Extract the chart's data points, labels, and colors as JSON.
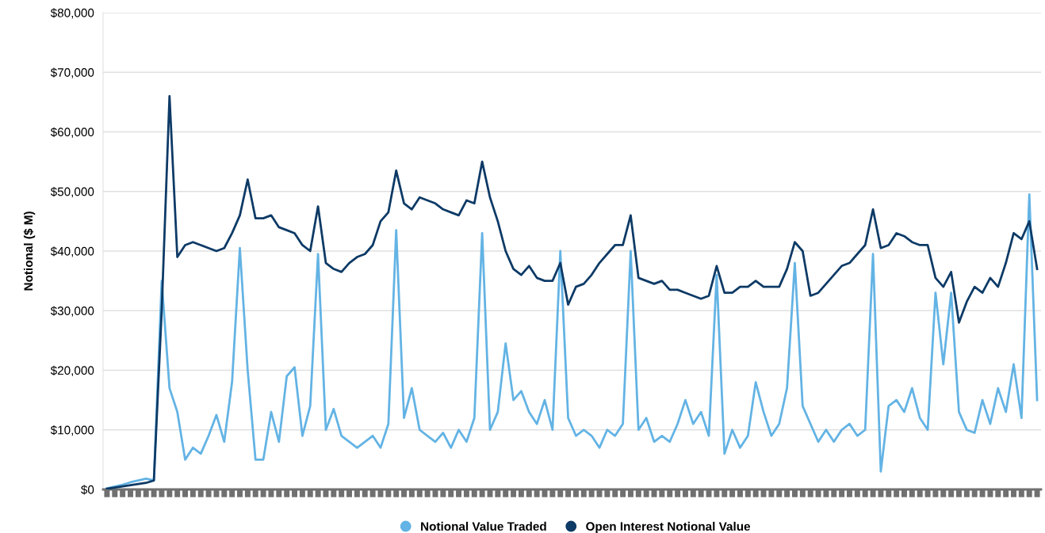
{
  "chart_data": {
    "type": "line",
    "ylabel": "Notional ($ M)",
    "categories": [
      null,
      null,
      null,
      null,
      null,
      null,
      null,
      null,
      null,
      null,
      null,
      null,
      null,
      null,
      null,
      null,
      null,
      null,
      null,
      null,
      null,
      null,
      null,
      null,
      null,
      null,
      null,
      null,
      null,
      null,
      null,
      null,
      null,
      null,
      null,
      null,
      null,
      null,
      null,
      null,
      null,
      null,
      null,
      null,
      null,
      null,
      null,
      null,
      null,
      null,
      null,
      null,
      null,
      null,
      null,
      null,
      null,
      null,
      null,
      null,
      null,
      null,
      null,
      null,
      null,
      null,
      null,
      null,
      null,
      null,
      null,
      null,
      null,
      null,
      null,
      null,
      null,
      null,
      null,
      null,
      null,
      null,
      null,
      null,
      null,
      null,
      null,
      null,
      null,
      null,
      null,
      null,
      null,
      null,
      null,
      null,
      null,
      null,
      null,
      null,
      null,
      null,
      null,
      null,
      null,
      null,
      null,
      null,
      null,
      null,
      null,
      null,
      null,
      null,
      null,
      null,
      null,
      null,
      null,
      null
    ],
    "series": [
      {
        "name": "Notional Value Traded",
        "color": "#63b3e4",
        "values": [
          200,
          500,
          800,
          1200,
          1500,
          1800,
          1500,
          35000,
          17000,
          13000,
          5000,
          7000,
          6000,
          9000,
          12500,
          8000,
          18000,
          40500,
          20000,
          5000,
          5000,
          13000,
          8000,
          19000,
          20500,
          9000,
          14000,
          39500,
          10000,
          13500,
          9000,
          8000,
          7000,
          8000,
          9000,
          7000,
          11000,
          43500,
          12000,
          17000,
          10000,
          9000,
          8000,
          9500,
          7000,
          10000,
          8000,
          12000,
          43000,
          10000,
          13000,
          24500,
          15000,
          16500,
          13000,
          11000,
          15000,
          10000,
          40000,
          12000,
          9000,
          10000,
          9000,
          7000,
          10000,
          9000,
          11000,
          40000,
          10000,
          12000,
          8000,
          9000,
          8000,
          11000,
          15000,
          11000,
          13000,
          9000,
          36000,
          6000,
          10000,
          7000,
          9000,
          18000,
          13000,
          9000,
          11000,
          17000,
          38000,
          14000,
          11000,
          8000,
          10000,
          8000,
          10000,
          11000,
          9000,
          10000,
          39500,
          3000,
          14000,
          15000,
          13000,
          17000,
          12000,
          10000,
          33000,
          21000,
          33000,
          13000,
          10000,
          9500,
          15000,
          11000,
          17000,
          13000,
          21000,
          12000,
          49500,
          15000
        ]
      },
      {
        "name": "Open Interest Notional Value",
        "color": "#0d3a66",
        "values": [
          100,
          300,
          500,
          700,
          900,
          1100,
          1500,
          30000,
          66000,
          39000,
          41000,
          41500,
          41000,
          40500,
          40000,
          40500,
          43000,
          46000,
          52000,
          45500,
          45500,
          46000,
          44000,
          43500,
          43000,
          41000,
          40000,
          47500,
          38000,
          37000,
          36500,
          38000,
          39000,
          39500,
          41000,
          45000,
          46500,
          53500,
          48000,
          47000,
          49000,
          48500,
          48000,
          47000,
          46500,
          46000,
          48500,
          48000,
          55000,
          49000,
          45000,
          40000,
          37000,
          36000,
          37500,
          35500,
          35000,
          35000,
          38000,
          31000,
          34000,
          34500,
          36000,
          38000,
          39500,
          41000,
          41000,
          46000,
          35500,
          35000,
          34500,
          35000,
          33500,
          33500,
          33000,
          32500,
          32000,
          32500,
          37500,
          33000,
          33000,
          34000,
          34000,
          35000,
          34000,
          34000,
          34000,
          37000,
          41500,
          40000,
          32500,
          33000,
          34500,
          36000,
          37500,
          38000,
          39500,
          41000,
          47000,
          40500,
          41000,
          43000,
          42500,
          41500,
          41000,
          41000,
          35500,
          34000,
          36500,
          28000,
          31500,
          34000,
          33000,
          35500,
          34000,
          38000,
          43000,
          42000,
          45000,
          37000
        ]
      }
    ],
    "ylim": [
      0,
      80000
    ],
    "yticks": [
      {
        "value": 0,
        "label": "$0"
      },
      {
        "value": 10000,
        "label": "$10,000"
      },
      {
        "value": 20000,
        "label": "$20,000"
      },
      {
        "value": 30000,
        "label": "$30,000"
      },
      {
        "value": 40000,
        "label": "$40,000"
      },
      {
        "value": 50000,
        "label": "$50,000"
      },
      {
        "value": 60000,
        "label": "$60,000"
      },
      {
        "value": 70000,
        "label": "$70,000"
      },
      {
        "value": 80000,
        "label": "$80,000"
      }
    ],
    "grid": "y",
    "legend": "bottom",
    "marker": "none",
    "line_style": "solid",
    "tick_labels": "y"
  }
}
